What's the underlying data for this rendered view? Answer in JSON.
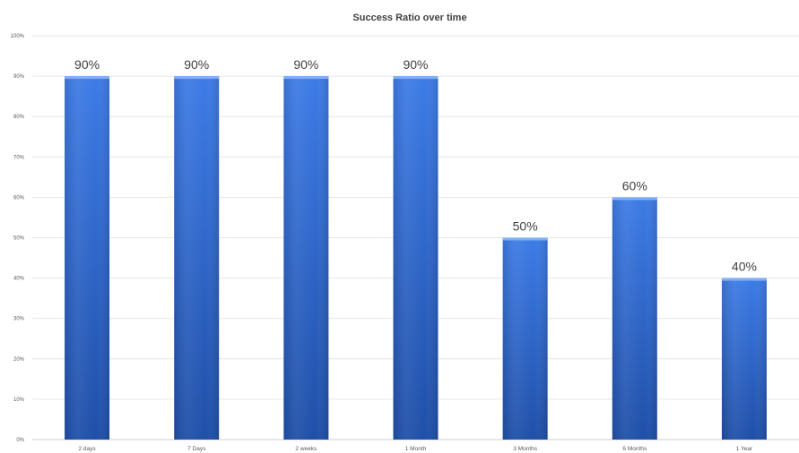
{
  "chart_data": {
    "type": "bar",
    "title": "Success Ratio over time",
    "xlabel": "",
    "ylabel": "",
    "categories": [
      "2 days",
      "7 Days",
      "2 weeks",
      "1 Month",
      "3 Months",
      "6 Months",
      "1 Year"
    ],
    "values": [
      90,
      90,
      90,
      90,
      50,
      60,
      40
    ],
    "data_labels": [
      "90%",
      "90%",
      "90%",
      "90%",
      "50%",
      "60%",
      "40%"
    ],
    "ylim": [
      0,
      100
    ],
    "yticks": [
      0,
      10,
      20,
      30,
      40,
      50,
      60,
      70,
      80,
      90,
      100
    ],
    "ytick_labels": [
      "0%",
      "10%",
      "20%",
      "30%",
      "40%",
      "50%",
      "60%",
      "70%",
      "80%",
      "90%",
      "100%"
    ],
    "grid": true,
    "legend": "none",
    "colors": {
      "bar_top": "#3d7be6",
      "bar_bottom": "#1f4fa8",
      "bar_cap": "#7fb0f5"
    }
  }
}
